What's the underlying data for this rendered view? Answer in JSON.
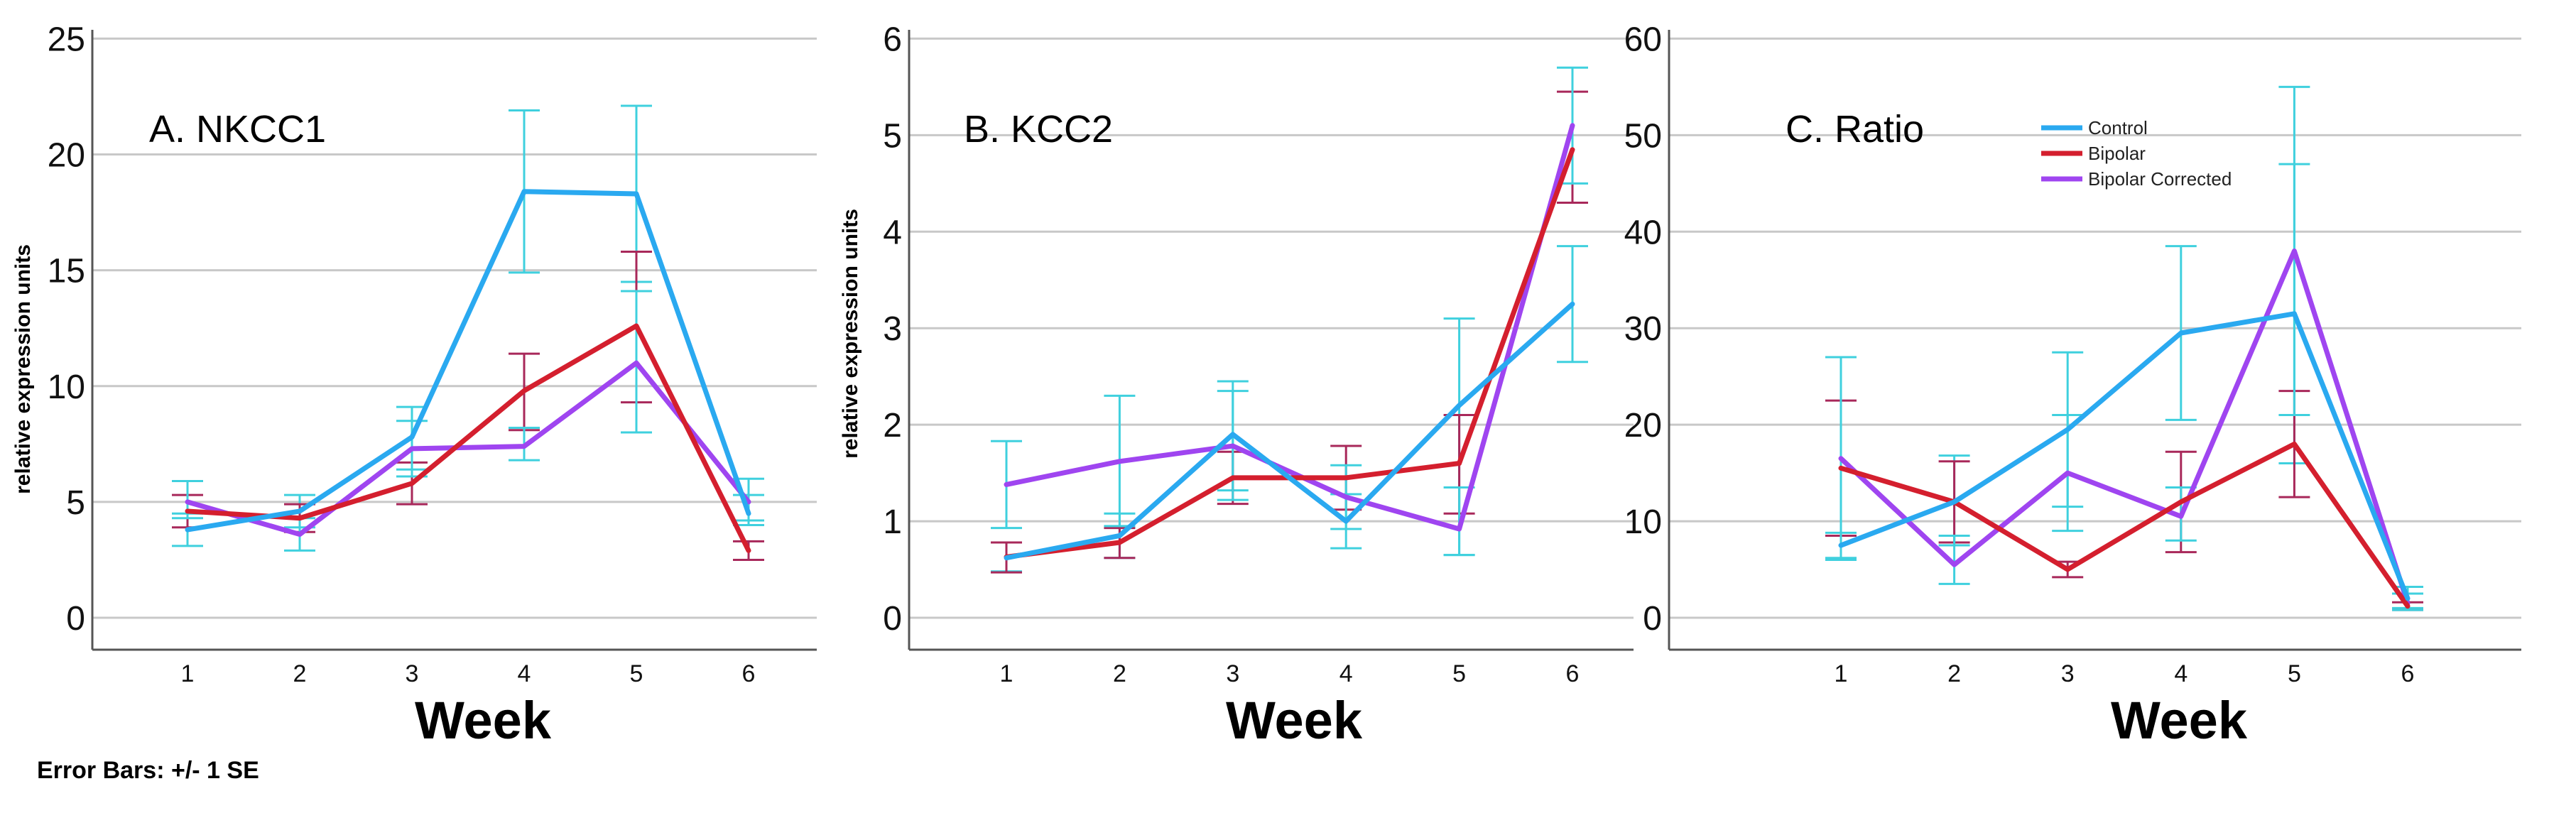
{
  "footnote": "Error Bars: +/- 1 SE",
  "colors": {
    "control": "#2aa9f0",
    "bipolar": "#d41f2e",
    "bipolar_corrected": "#9f45f0",
    "control_error": "#3fd0de",
    "bipolar_error": "#a8285a",
    "gridline": "#c8c8c8",
    "axis": "#555555"
  },
  "chart_data": [
    {
      "type": "line",
      "title": "A.  NKCC1",
      "xlabel": "Week",
      "ylabel": "relative expression units",
      "x": [
        "1",
        "2",
        "3",
        "4",
        "5",
        "6"
      ],
      "ylim": [
        0,
        25
      ],
      "yticks": [
        0,
        5,
        10,
        15,
        20,
        25
      ],
      "grid": true,
      "series": [
        {
          "id": "control",
          "values": [
            3.8,
            4.6,
            7.8,
            18.4,
            18.3,
            4.5
          ],
          "err_low": [
            3.1,
            3.9,
            6.4,
            14.9,
            14.5,
            4.0
          ],
          "err_high": [
            4.5,
            5.3,
            9.1,
            21.9,
            22.1,
            5.3
          ]
        },
        {
          "id": "bipolar",
          "values": [
            4.6,
            4.3,
            5.8,
            9.8,
            12.6,
            2.9
          ],
          "err_low": [
            3.9,
            3.7,
            4.9,
            8.1,
            9.3,
            2.5
          ],
          "err_high": [
            5.3,
            4.9,
            6.7,
            11.4,
            15.8,
            3.3
          ]
        },
        {
          "id": "bipolar_corrected",
          "values": [
            5.0,
            3.6,
            7.3,
            7.4,
            11.0,
            5.0
          ],
          "err_low": [
            4.3,
            2.9,
            6.1,
            6.8,
            8.0,
            4.2
          ],
          "err_high": [
            5.9,
            4.3,
            8.5,
            8.2,
            14.1,
            6.0
          ]
        }
      ]
    },
    {
      "type": "line",
      "title": "B.  KCC2",
      "xlabel": "Week",
      "ylabel": "relative expression units",
      "x": [
        "1",
        "2",
        "3",
        "4",
        "5",
        "6"
      ],
      "ylim": [
        0,
        6
      ],
      "yticks": [
        0,
        1,
        2,
        3,
        4,
        5,
        6
      ],
      "grid": true,
      "series": [
        {
          "id": "control",
          "values": [
            0.62,
            0.85,
            1.9,
            1.0,
            2.2,
            3.25
          ],
          "err_low": [
            0.48,
            0.62,
            1.32,
            0.72,
            0.65,
            2.65
          ],
          "err_high": [
            0.78,
            1.08,
            2.45,
            1.28,
            3.1,
            3.85
          ]
        },
        {
          "id": "bipolar",
          "values": [
            0.63,
            0.78,
            1.45,
            1.45,
            1.6,
            4.85
          ],
          "err_low": [
            0.47,
            0.62,
            1.18,
            1.12,
            1.08,
            4.3
          ],
          "err_high": [
            0.78,
            0.93,
            1.72,
            1.78,
            2.1,
            5.45
          ]
        },
        {
          "id": "bipolar_corrected",
          "values": [
            1.38,
            1.62,
            1.78,
            1.25,
            0.92,
            5.1
          ],
          "err_low": [
            0.93,
            0.95,
            1.22,
            0.92,
            0.65,
            4.5
          ],
          "err_high": [
            1.83,
            2.3,
            2.35,
            1.58,
            1.35,
            5.7
          ]
        }
      ]
    },
    {
      "type": "line",
      "title": "C.  Ratio",
      "xlabel": "Week",
      "ylabel": "",
      "x": [
        "1",
        "2",
        "3",
        "4",
        "5",
        "6"
      ],
      "ylim": [
        0,
        60
      ],
      "yticks": [
        0,
        10,
        20,
        30,
        40,
        50,
        60
      ],
      "grid": true,
      "legend": "top-center",
      "series": [
        {
          "id": "control",
          "name": "Control",
          "values": [
            7.5,
            12.0,
            19.5,
            29.5,
            31.5,
            2.0
          ],
          "err_low": [
            6.2,
            7.5,
            11.5,
            20.5,
            16.0,
            1.0
          ],
          "err_high": [
            8.8,
            16.8,
            27.5,
            38.5,
            47.0,
            3.2
          ]
        },
        {
          "id": "bipolar",
          "name": "Bipolar",
          "values": [
            15.5,
            12.0,
            5.0,
            12.0,
            18.0,
            1.2
          ],
          "err_low": [
            8.5,
            7.8,
            4.2,
            6.8,
            12.5,
            0.8
          ],
          "err_high": [
            22.5,
            16.2,
            5.8,
            17.2,
            23.5,
            1.6
          ]
        },
        {
          "id": "bipolar_corrected",
          "name": "Bipolar Corrected",
          "values": [
            16.5,
            5.5,
            15.0,
            10.5,
            38.0,
            1.5
          ],
          "err_low": [
            6.0,
            3.5,
            9.0,
            8.0,
            21.0,
            0.8
          ],
          "err_high": [
            27.0,
            8.5,
            21.0,
            13.5,
            55.0,
            2.5
          ]
        }
      ]
    }
  ]
}
